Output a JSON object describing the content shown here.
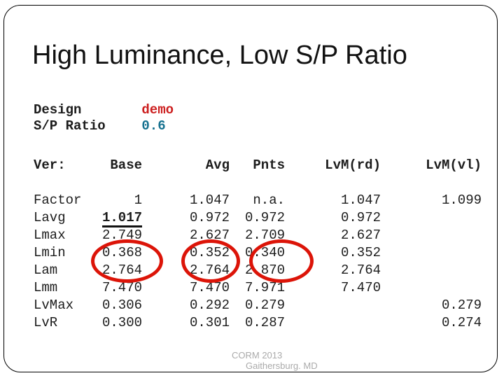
{
  "title": "High Luminance, Low S/P Ratio",
  "meta": {
    "design_label": "Design",
    "design_value": "demo",
    "ratio_label": "S/P Ratio",
    "ratio_value": "0.6"
  },
  "chart_data": {
    "type": "table",
    "headers": [
      "Ver:",
      "Base",
      "Avg",
      "Pnts",
      "LvM(rd)",
      "LvM(vl)"
    ],
    "rows": [
      {
        "label": "Factor",
        "base": "1",
        "avg": "1.047",
        "pnts": "n.a.",
        "lvm_rd": "1.047",
        "lvm_vl": "1.099"
      },
      {
        "label": "Lavg",
        "base": "1.017",
        "avg": "0.972",
        "pnts": "0.972",
        "lvm_rd": "0.972",
        "lvm_vl": ""
      },
      {
        "label": "Lmax",
        "base": "2.749",
        "avg": "2.627",
        "pnts": "2.709",
        "lvm_rd": "2.627",
        "lvm_vl": ""
      },
      {
        "label": "Lmin",
        "base": "0.368",
        "avg": "0.352",
        "pnts": "0.340",
        "lvm_rd": "0.352",
        "lvm_vl": ""
      },
      {
        "label": "Lam",
        "base": "2.764",
        "avg": "2.764",
        "pnts": "2.870",
        "lvm_rd": "2.764",
        "lvm_vl": ""
      },
      {
        "label": "Lmm",
        "base": "7.470",
        "avg": "7.470",
        "pnts": "7.971",
        "lvm_rd": "7.470",
        "lvm_vl": ""
      },
      {
        "label": "LvMax",
        "base": "0.306",
        "avg": "0.292",
        "pnts": "0.279",
        "lvm_rd": "",
        "lvm_vl": "0.279"
      },
      {
        "label": "LvR",
        "base": "0.300",
        "avg": "0.301",
        "pnts": "0.287",
        "lvm_rd": "",
        "lvm_vl": "0.274"
      }
    ],
    "annotations": {
      "underlined_cell": "Lavg Base value 1.017 (bold, underlined)",
      "circled_cells": [
        "Lmin Base 0.368",
        "Lmin Avg 0.352",
        "Lmin Pnts 0.340"
      ]
    }
  },
  "footer": {
    "line1": "CORM 2013",
    "line2": "Gaithersburg. MD"
  },
  "colors": {
    "red_text": "#cc1e1e",
    "blue_text": "#15718f",
    "circle_red": "#dc1408",
    "footer_gray": "#aaaaaa"
  }
}
